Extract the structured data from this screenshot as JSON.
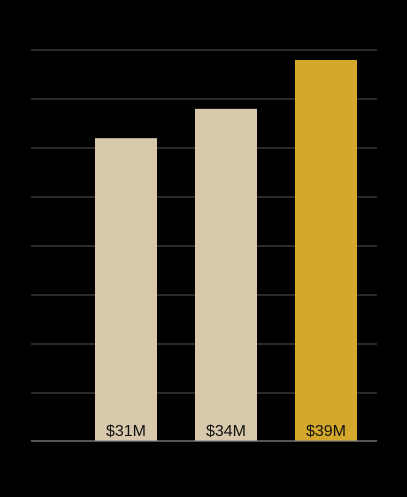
{
  "chart_data": {
    "type": "bar",
    "categories": [
      "",
      "",
      ""
    ],
    "values": [
      31,
      34,
      39
    ],
    "data_labels": [
      "$31M",
      "$34M",
      "$39M"
    ],
    "ylim": [
      0,
      39
    ],
    "grid": true,
    "colors": {
      "background": "#000000",
      "gridline": "#555555",
      "bar_default": "#d8c9ac",
      "bar_highlight": "#d4a82a",
      "label_text": "#111111"
    },
    "highlight_index": 2
  }
}
